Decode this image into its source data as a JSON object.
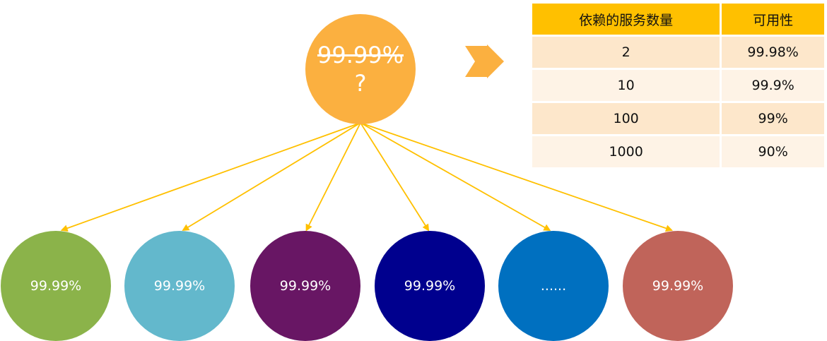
{
  "top_node": {
    "old_value": "99.99%",
    "new_value": "?",
    "color": "#FBB040"
  },
  "table": {
    "headers": [
      "依赖的服务数量",
      "可用性"
    ],
    "rows": [
      [
        "2",
        "99.98%"
      ],
      [
        "10",
        "99.9%"
      ],
      [
        "100",
        "99%"
      ],
      [
        "1000",
        "90%"
      ]
    ],
    "header_color": "#FFC000"
  },
  "dependencies": [
    {
      "label": "99.99%",
      "color": "#8BB34A"
    },
    {
      "label": "99.99%",
      "color": "#63B8CC"
    },
    {
      "label": "99.99%",
      "color": "#681664"
    },
    {
      "label": "99.99%",
      "color": "#00008E"
    },
    {
      "label": "......",
      "color": "#0070C0"
    },
    {
      "label": "99.99%",
      "color": "#C0645A"
    }
  ],
  "arrow_color": "#FFC000"
}
